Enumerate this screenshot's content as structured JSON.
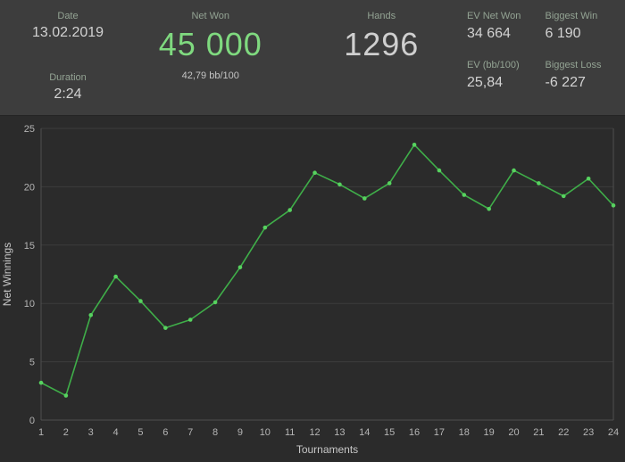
{
  "header": {
    "date": {
      "label": "Date",
      "value": "13.02.2019"
    },
    "duration": {
      "label": "Duration",
      "value": "2:24"
    },
    "net_won": {
      "label": "Net Won",
      "value": "45 000",
      "rate": "42,79 bb/100"
    },
    "hands": {
      "label": "Hands",
      "value": "1296"
    },
    "stats": [
      {
        "label": "EV Net Won",
        "value": "34 664"
      },
      {
        "label": "Biggest Win",
        "value": "6 190"
      },
      {
        "label": "EV (bb/100)",
        "value": "25,84"
      },
      {
        "label": "Biggest Loss",
        "value": "-6 227"
      }
    ]
  },
  "chart_data": {
    "type": "line",
    "x": [
      1,
      2,
      3,
      4,
      5,
      6,
      7,
      8,
      9,
      10,
      11,
      12,
      13,
      14,
      15,
      16,
      17,
      18,
      19,
      20,
      21,
      22,
      23,
      24
    ],
    "values": [
      3.2,
      2.1,
      9.0,
      12.3,
      10.2,
      7.9,
      8.6,
      10.1,
      13.1,
      16.5,
      18.0,
      21.2,
      20.2,
      19.0,
      20.3,
      23.6,
      21.4,
      19.3,
      18.1,
      21.4,
      20.3,
      19.2,
      20.7,
      18.4
    ],
    "xlabel": "Tournaments",
    "ylabel": "Net Winnings",
    "xlim": [
      1,
      24
    ],
    "ylim": [
      0,
      25
    ],
    "yticks": [
      0,
      5,
      10,
      15,
      20,
      25
    ],
    "grid": true,
    "legend": "none",
    "line_color": "#3fae49",
    "marker_color": "#57d25f"
  },
  "colors": {
    "header_bg": "#3d3d3d",
    "chart_bg": "#2b2b2b",
    "label": "#93a393",
    "value": "#d2d2d2",
    "accent_green": "#7fd97f",
    "grid_line": "#3d3d3d",
    "axis_line": "#4f4f4f",
    "tick_text": "#b5b5b5",
    "axis_title": "#c8c8c8"
  }
}
